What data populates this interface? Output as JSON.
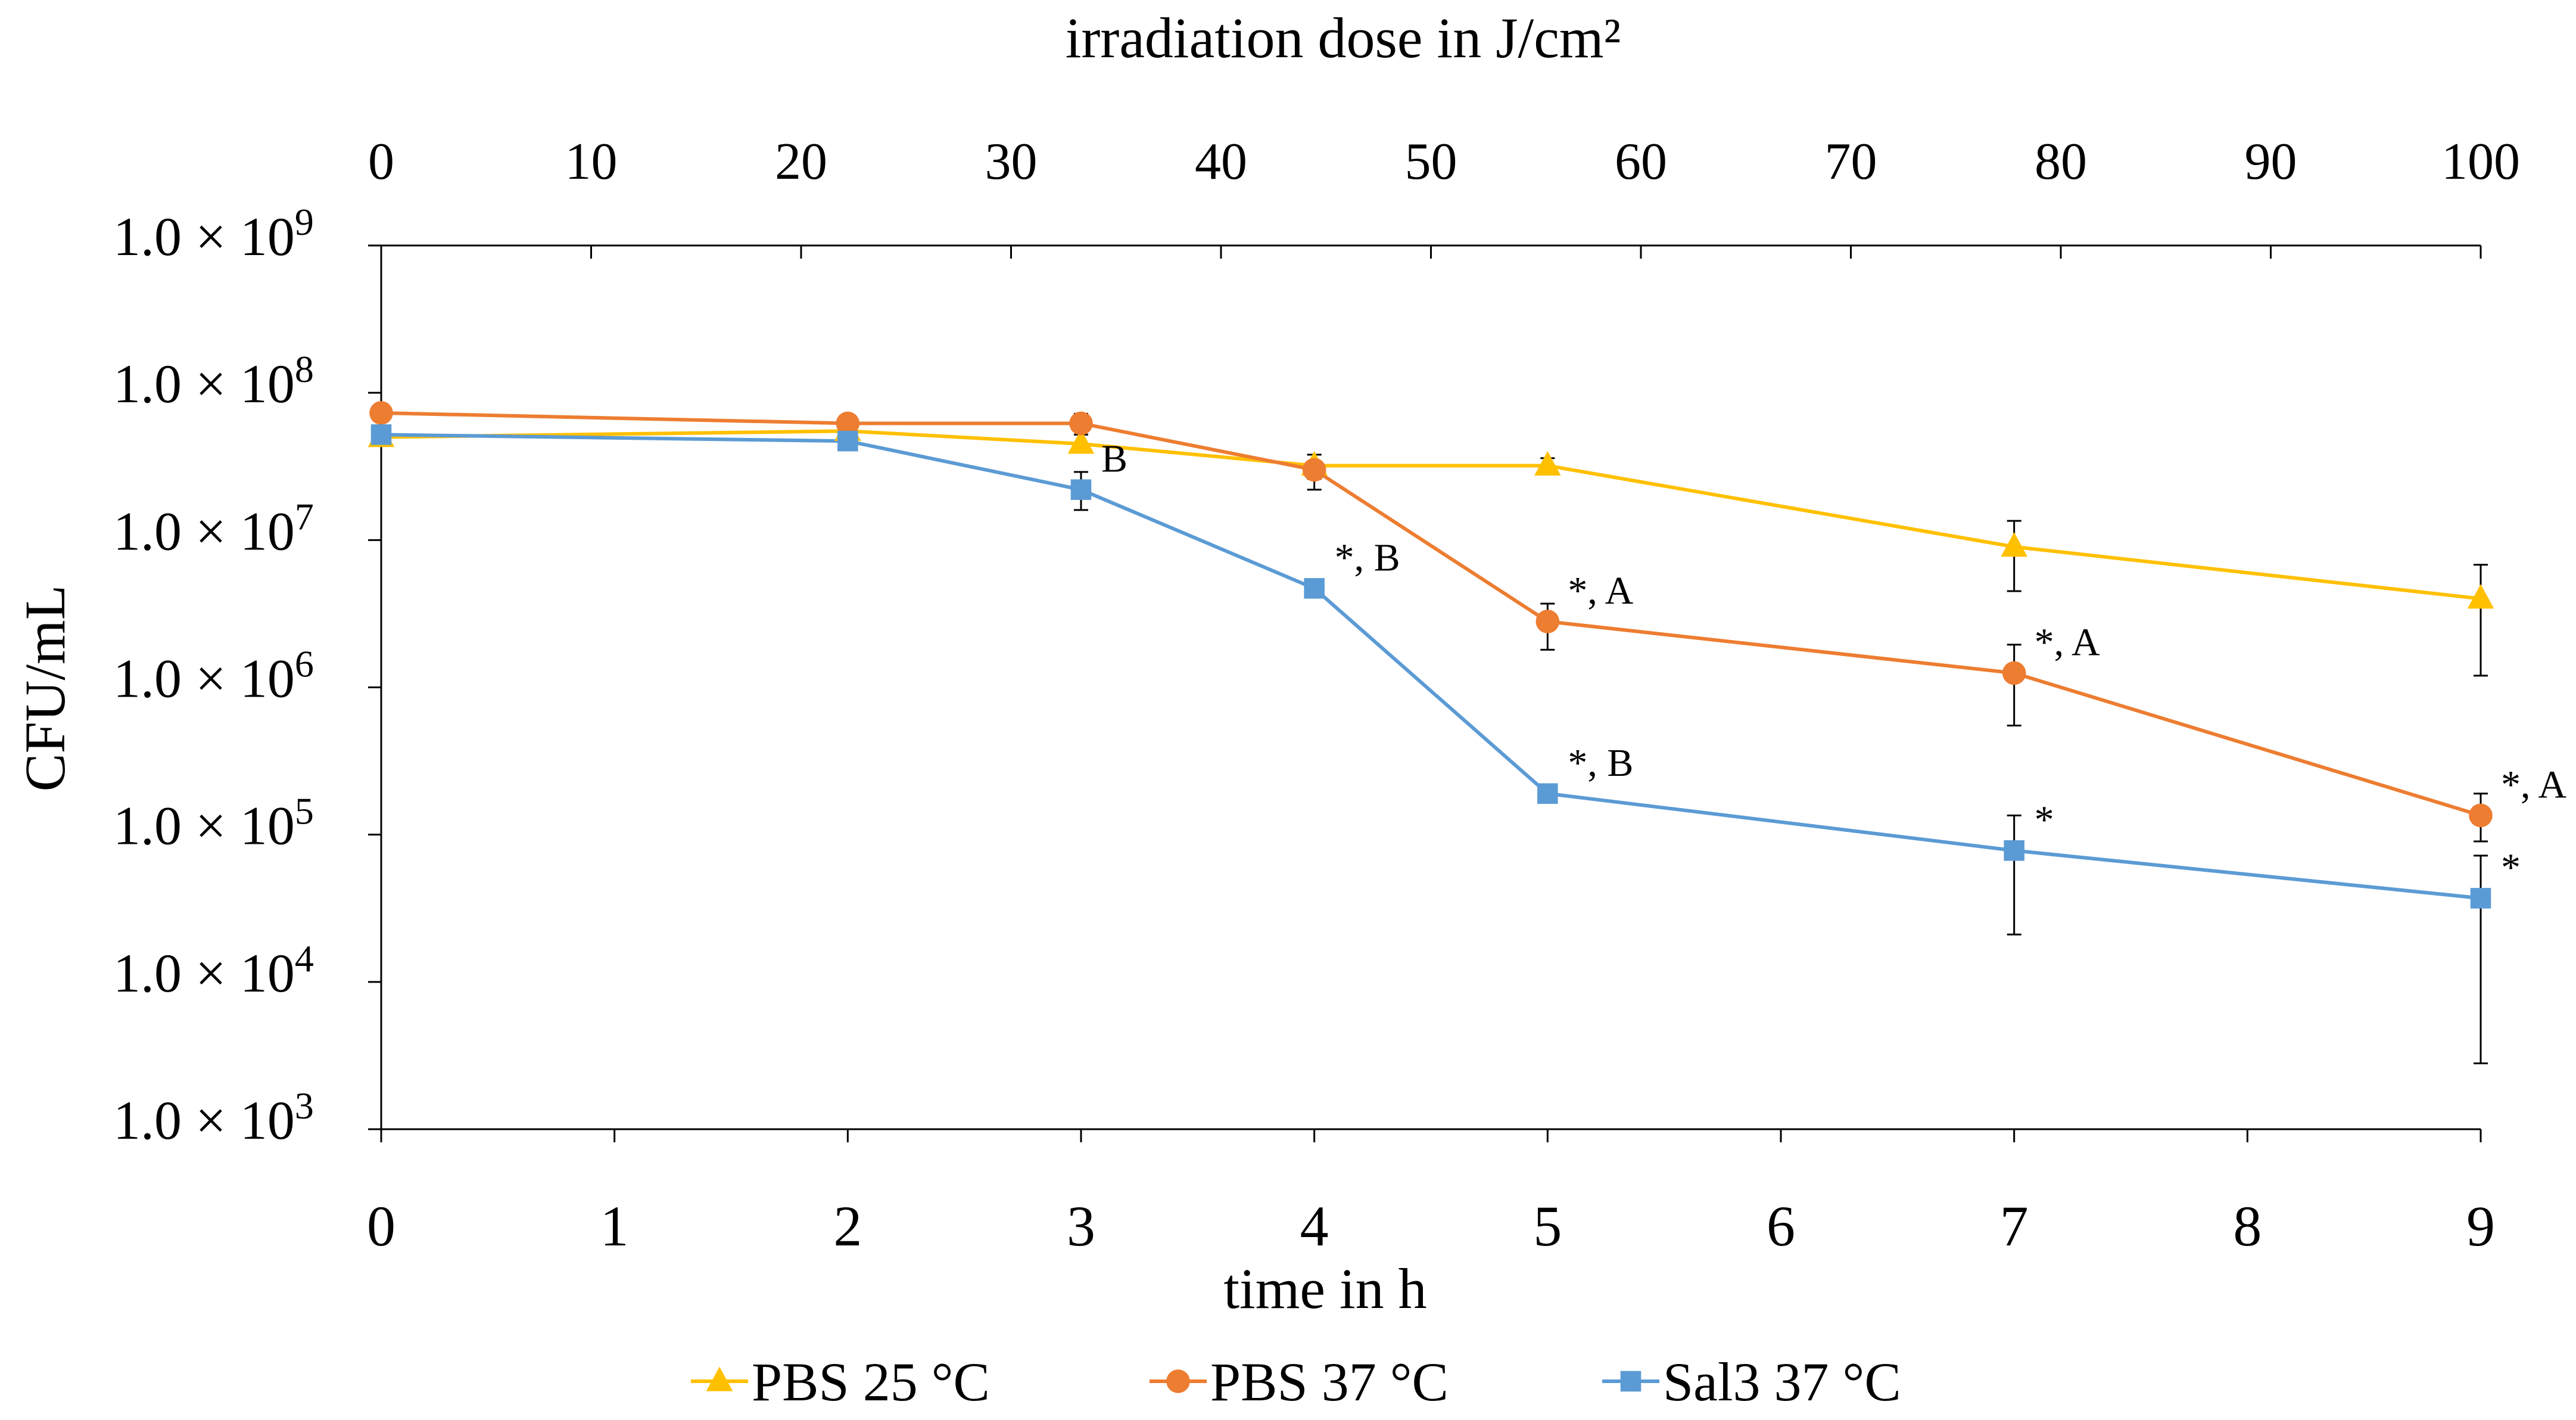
{
  "chart_data": {
    "type": "line",
    "y_scale": "log",
    "ylim": [
      1000,
      1000000000
    ],
    "xlim": [
      0,
      9
    ],
    "x": [
      0,
      2,
      3,
      4,
      5,
      7,
      9
    ],
    "xlabel": "time in h",
    "ylabel": "CFU/mL",
    "x_ticks": [
      "0",
      "1",
      "2",
      "3",
      "4",
      "5",
      "6",
      "7",
      "8",
      "9"
    ],
    "y_ticks": [
      {
        "mantissa": "1.0 × 10",
        "exp": "3",
        "value": 1000
      },
      {
        "mantissa": "1.0 × 10",
        "exp": "4",
        "value": 10000
      },
      {
        "mantissa": "1.0 × 10",
        "exp": "5",
        "value": 100000
      },
      {
        "mantissa": "1.0 × 10",
        "exp": "6",
        "value": 1000000
      },
      {
        "mantissa": "1.0 × 10",
        "exp": "7",
        "value": 10000000
      },
      {
        "mantissa": "1.0 × 10",
        "exp": "8",
        "value": 100000000
      },
      {
        "mantissa": "1.0 × 10",
        "exp": "9",
        "value": 1000000000
      }
    ],
    "secondary_x_axis": {
      "label": "irradiation dose in J/cm²",
      "range": [
        0,
        100
      ],
      "ticks": [
        "0",
        "10",
        "20",
        "30",
        "40",
        "50",
        "60",
        "70",
        "80",
        "90",
        "100"
      ]
    },
    "legend_position": "bottom",
    "series": [
      {
        "name": "PBS 25 °C",
        "color": "#FFC000",
        "marker": "triangle",
        "values": [
          50000000,
          55000000,
          45000000,
          32000000,
          32000000,
          9000000,
          4000000
        ],
        "err_low": [
          45000000,
          50000000,
          40000000,
          26000000,
          29000000,
          4500000,
          1200000
        ],
        "err_high": [
          55000000,
          60000000,
          52000000,
          38000000,
          36000000,
          13500000,
          6800000
        ],
        "annotations": [
          "",
          "",
          "",
          "",
          "",
          "",
          ""
        ]
      },
      {
        "name": "PBS 37 °C",
        "color": "#ED7D31",
        "marker": "circle",
        "values": [
          73000000,
          62000000,
          62000000,
          30000000,
          2800000,
          1250000,
          135000
        ],
        "err_low": [
          67000000,
          56000000,
          55000000,
          22000000,
          1800000,
          550000,
          90000
        ],
        "err_high": [
          80000000,
          68000000,
          72000000,
          38000000,
          3700000,
          1950000,
          190000
        ],
        "annotations": [
          "",
          "",
          "",
          "",
          "*, A",
          "*, A",
          "*, A"
        ]
      },
      {
        "name": "Sal3 37 °C",
        "color": "#5B9BD5",
        "marker": "square",
        "values": [
          52000000,
          47000000,
          22000000,
          4700000,
          190000,
          78000,
          37000
        ],
        "err_low": [
          47000000,
          43000000,
          16000000,
          4200000,
          170000,
          21000,
          2800
        ],
        "err_high": [
          57000000,
          51000000,
          29000000,
          5200000,
          210000,
          135000,
          72000
        ],
        "annotations": [
          "",
          "",
          "B",
          "*, B",
          "*, B",
          "*",
          "*"
        ]
      }
    ]
  }
}
